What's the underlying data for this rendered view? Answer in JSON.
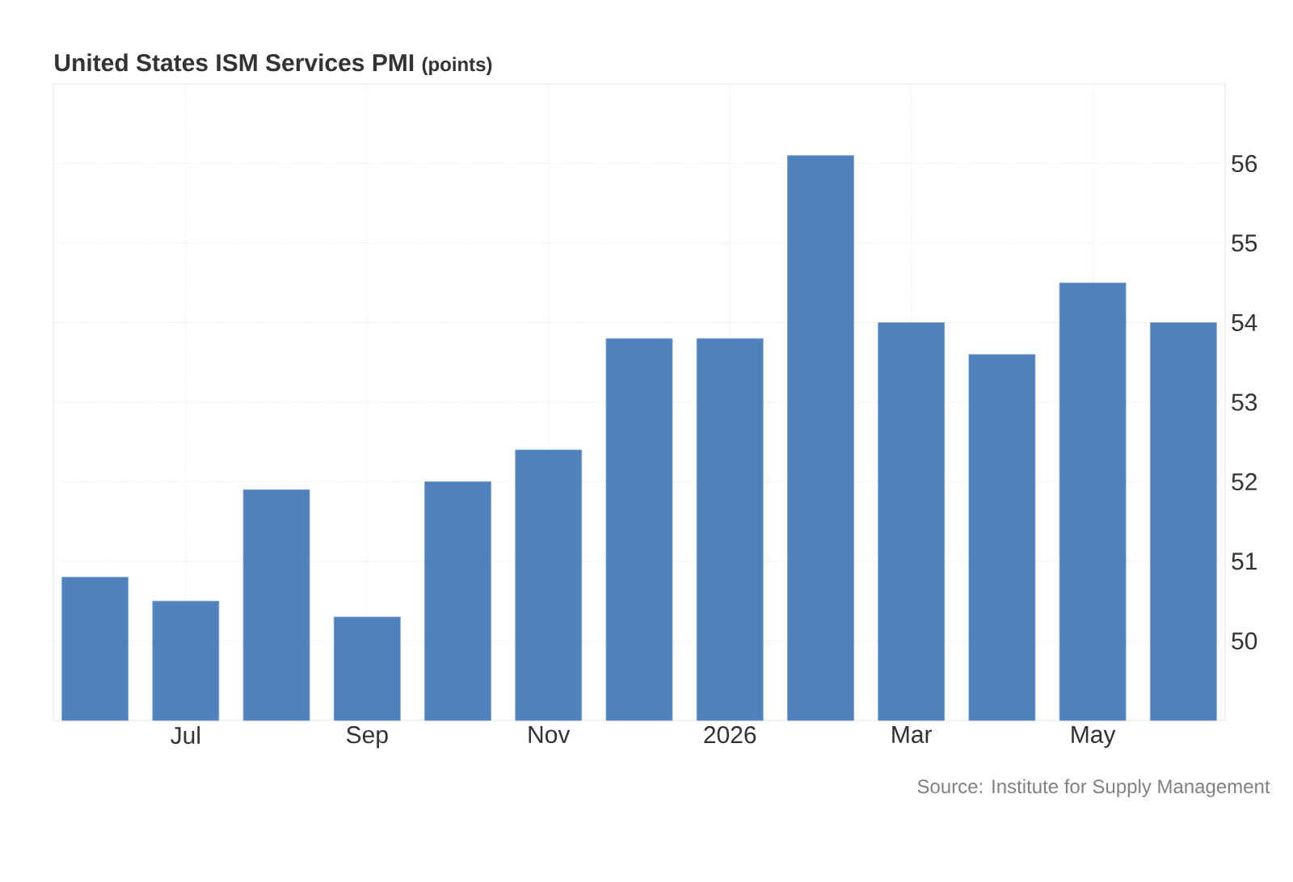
{
  "chart_data": {
    "type": "bar",
    "title": "United States ISM Services PMI",
    "subtitle": "(points)",
    "categories": [
      null,
      "Jul",
      null,
      "Sep",
      null,
      "Nov",
      null,
      "2026",
      null,
      "Mar",
      null,
      "May",
      null
    ],
    "values": [
      50.8,
      50.5,
      51.9,
      50.3,
      52.0,
      52.4,
      53.8,
      53.8,
      56.1,
      54.0,
      53.6,
      54.5,
      54.0
    ],
    "color": "#4f81bd",
    "ylim": [
      49,
      57
    ],
    "yticks": [
      50,
      51,
      52,
      53,
      54,
      55,
      56
    ],
    "grid": true,
    "annotations": [
      "Source: Institute for Supply Management"
    ]
  }
}
